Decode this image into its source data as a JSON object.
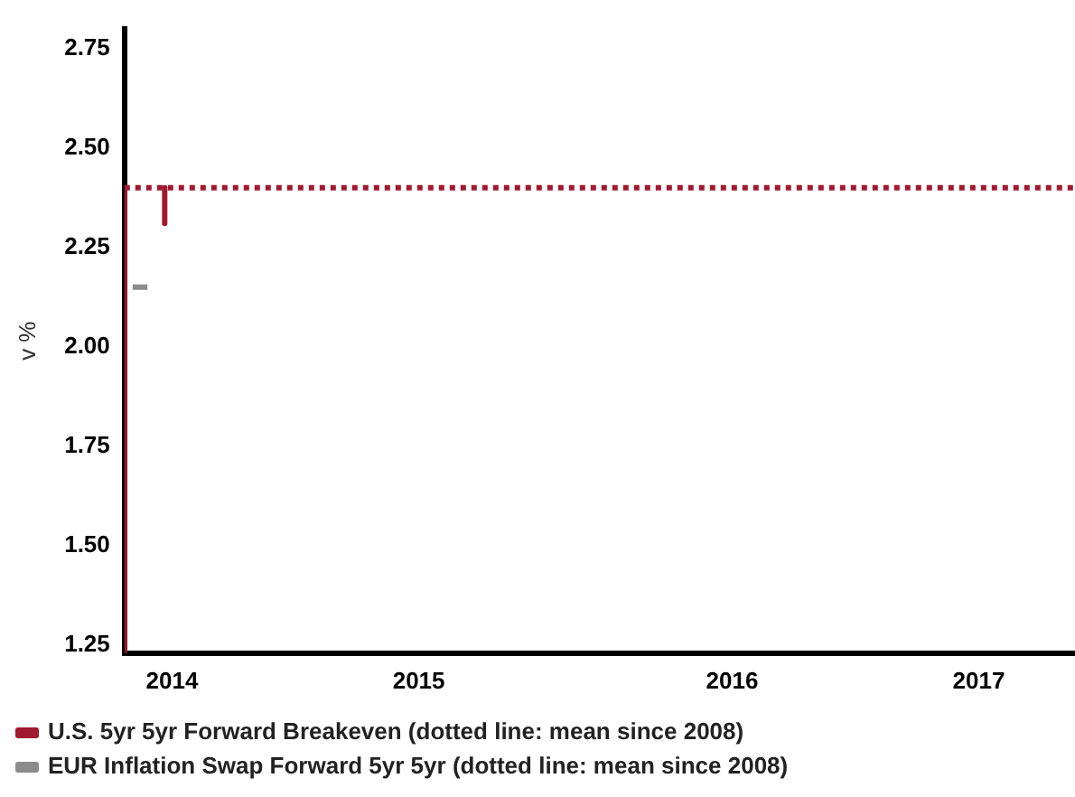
{
  "chart_data": {
    "type": "line",
    "ylabel": "v %",
    "xlim": [
      2013.807,
      2017.66
    ],
    "xticks": [
      {
        "value": 2014,
        "label": "2014"
      },
      {
        "value": 2015,
        "label": "2015"
      },
      {
        "value": 2016.27,
        "label": "2016"
      },
      {
        "value": 2017.27,
        "label": "2017"
      }
    ],
    "ylim": [
      1.23,
      2.8
    ],
    "yticks": [
      1.25,
      {
        "value": 1.5,
        "label": "1.50"
      },
      1.75,
      {
        "value": 2,
        "label": "2.00"
      },
      2.25,
      {
        "value": 2.5,
        "label": "2.50"
      },
      2.75
    ],
    "series": [
      {
        "name": "U.S. 5yr 5yr Forward Breakeven (dotted line: mean since 2008)",
        "color": "#a0192f",
        "x": [
          2013.807,
          2013.807,
          2013.9,
          2013.97,
          2013.97
        ],
        "values": [
          1.23,
          2.4,
          null,
          2.4,
          2.31
        ]
      },
      {
        "name": "EUR Inflation Swap Forward 5yr 5yr (dotted line: mean since 2008)",
        "color": "#8c8c8c",
        "x": [
          2013.84,
          2013.9
        ],
        "values": [
          2.15,
          2.15
        ]
      }
    ],
    "ref_lines": [
      {
        "axis": "y",
        "value": 2.4,
        "color": "#a0192f",
        "line_style": "dotted"
      }
    ],
    "grid": false,
    "legend": "bottom",
    "marker": "none",
    "line_style": "solid"
  }
}
